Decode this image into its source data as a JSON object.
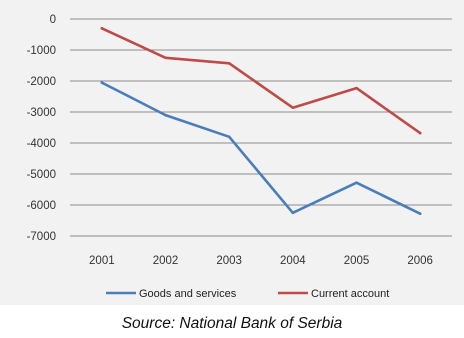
{
  "chart_data": {
    "type": "line",
    "categories": [
      "2001",
      "2002",
      "2003",
      "2004",
      "2005",
      "2006"
    ],
    "series": [
      {
        "name": "Goods and services",
        "color": "#4a7ebb",
        "values": [
          -2050,
          -3100,
          -3800,
          -6250,
          -5280,
          -6280
        ]
      },
      {
        "name": "Current account",
        "color": "#be4b48",
        "values": [
          -300,
          -1250,
          -1430,
          -2860,
          -2230,
          -3680
        ]
      }
    ],
    "yticks": [
      0,
      -1000,
      -2000,
      -3000,
      -4000,
      -5000,
      -6000,
      -7000
    ],
    "ylim": [
      -7000,
      0
    ],
    "grid": true,
    "legend_position": "bottom"
  },
  "caption": "Source: National Bank of Serbia"
}
